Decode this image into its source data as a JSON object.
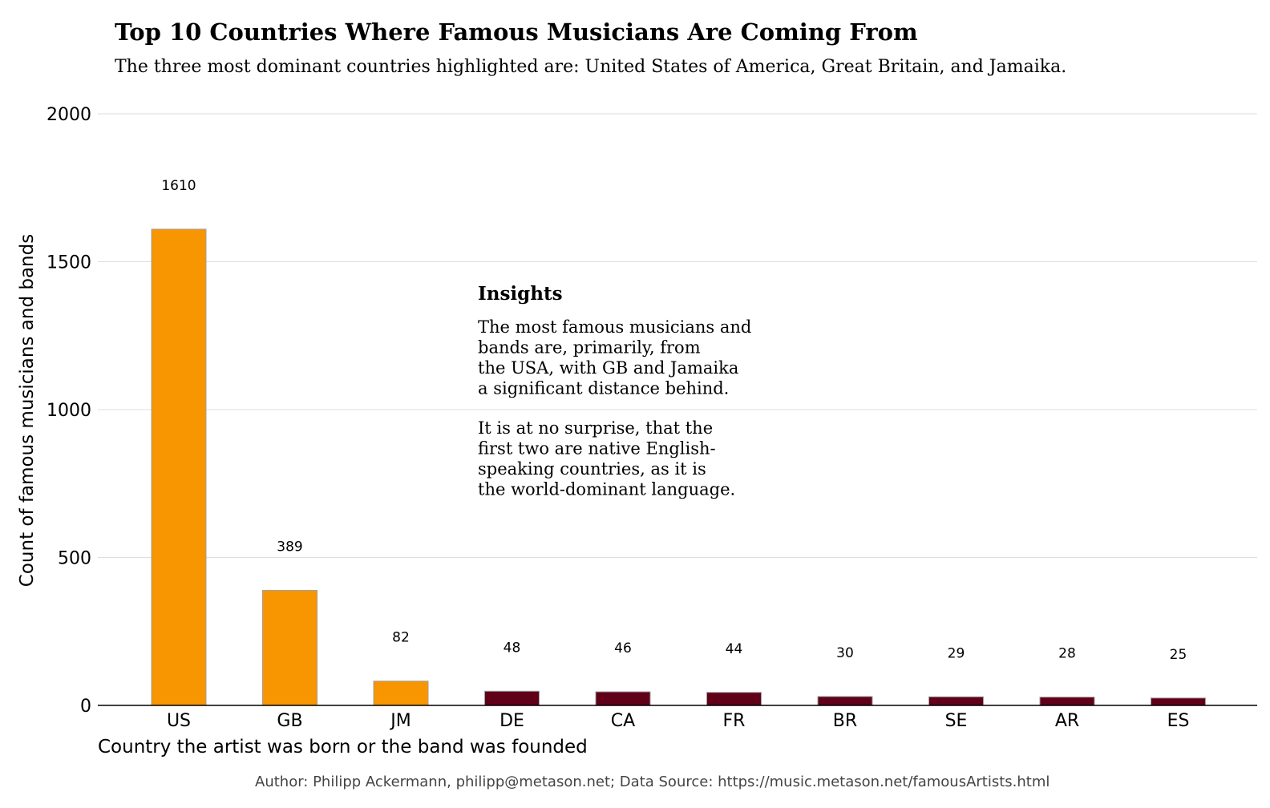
{
  "chart_data": {
    "type": "bar",
    "title": "Top 10 Countries Where Famous Musicians Are Coming From",
    "subtitle": "The three most dominant countries highlighted are: United States of America, Great Britain, and Jamaika.",
    "xlabel": "Country the artist was born or the band was founded",
    "ylabel": "Count of famous musicians and bands",
    "categories": [
      "US",
      "GB",
      "JM",
      "DE",
      "CA",
      "FR",
      "BR",
      "SE",
      "AR",
      "ES"
    ],
    "values": [
      1610,
      389,
      82,
      48,
      46,
      44,
      30,
      29,
      28,
      25
    ],
    "data_labels": [
      "1610",
      "389",
      "82",
      "48",
      "46",
      "44",
      "30",
      "29",
      "28",
      "25"
    ],
    "highlighted": [
      true,
      true,
      true,
      false,
      false,
      false,
      false,
      false,
      false,
      false
    ],
    "ylim": [
      0,
      2000
    ],
    "yticks": [
      0,
      500,
      1000,
      1500,
      2000
    ],
    "ytick_labels": [
      "0",
      "500",
      "1000",
      "1500",
      "2000"
    ],
    "grid": "horizontal",
    "colors": {
      "highlight": "#f79600",
      "other": "#610019",
      "grid": "#dddddd"
    },
    "annotation": {
      "title": "Insights",
      "lines": [
        "The most famous musicians and",
        "bands are, primarily, from",
        "the USA, with GB and Jamaika",
        "a significant distance behind.",
        "",
        "It is at no surprise, that the",
        "first two are native English-",
        "speaking countries, as it is",
        "the world-dominant language."
      ]
    },
    "footer": "Author: Philipp Ackermann, philipp@metason.net;  Data Source: https://music.metason.net/famousArtists.html"
  }
}
